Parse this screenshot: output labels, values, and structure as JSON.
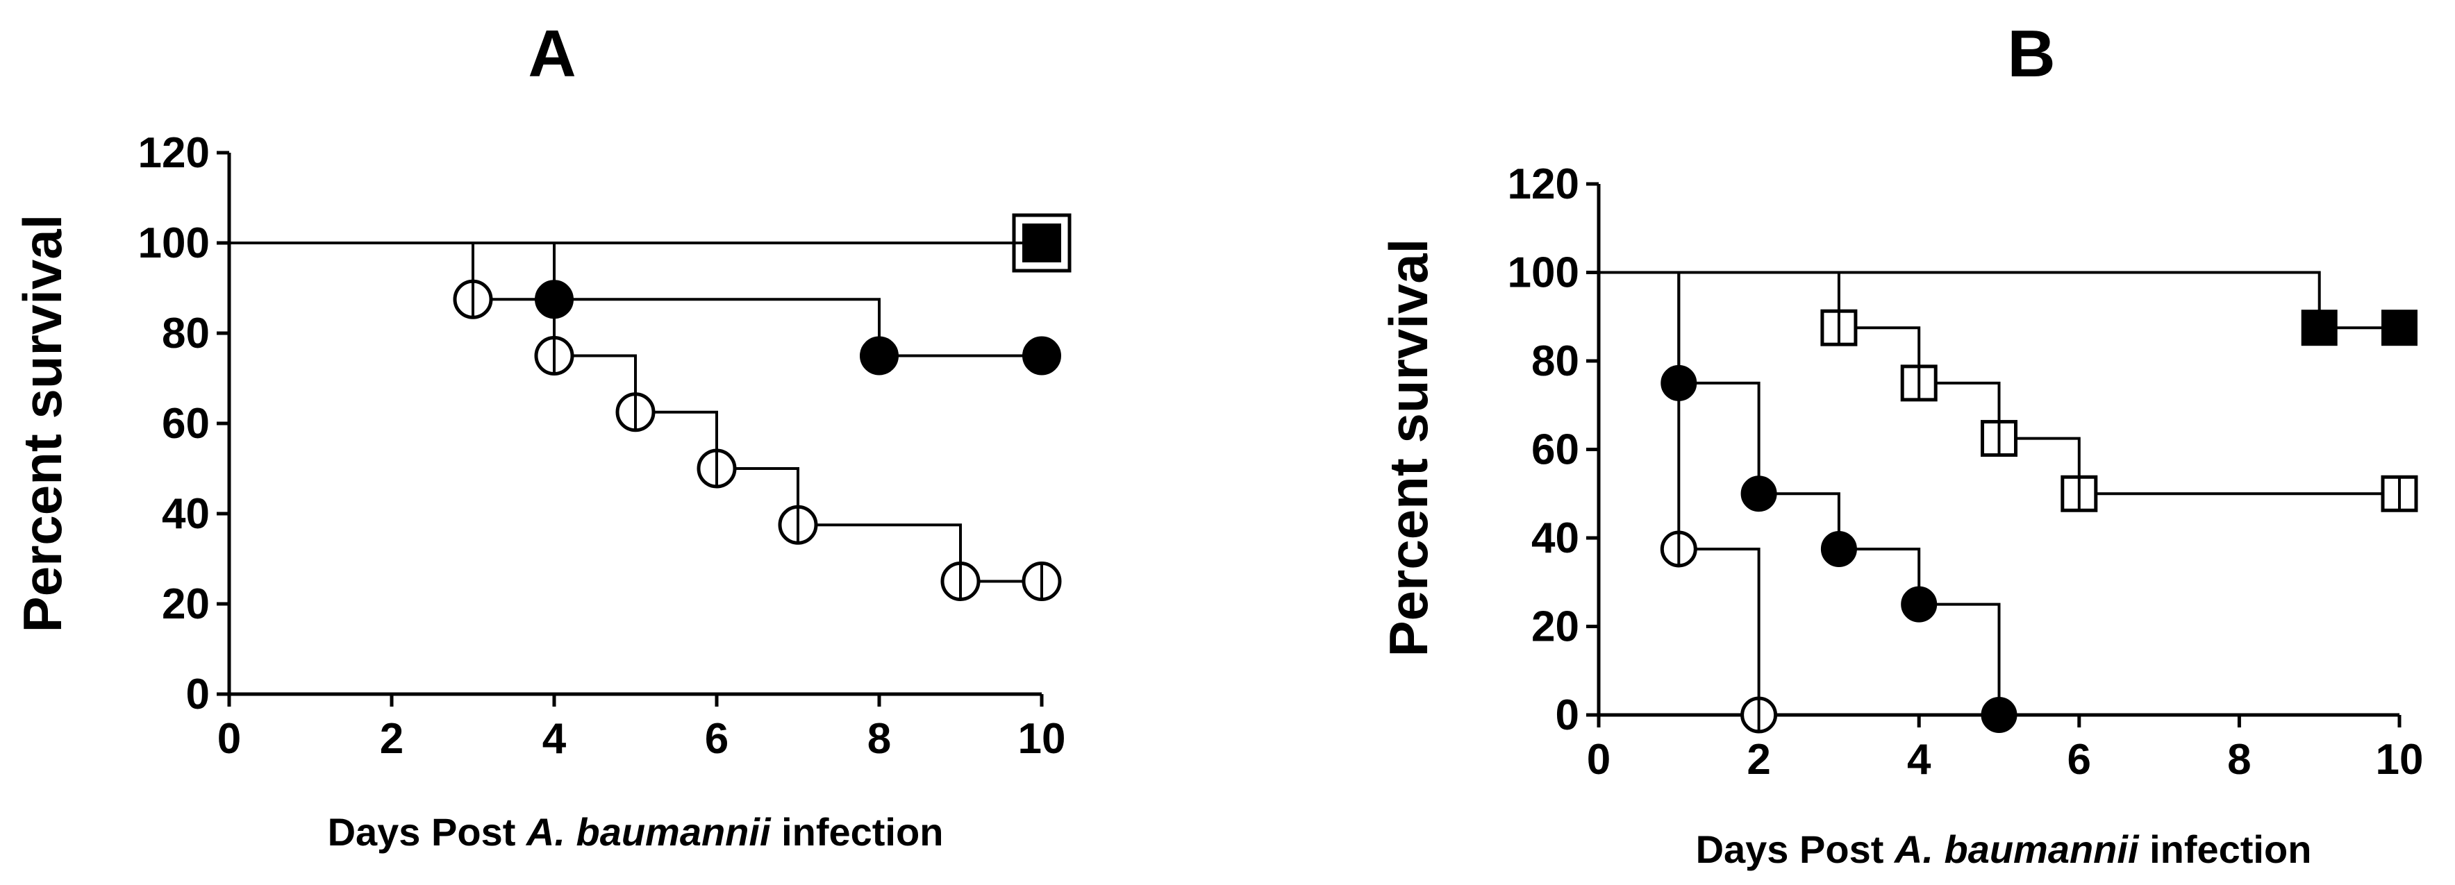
{
  "chart_data": [
    {
      "type": "line",
      "title": "A",
      "ylabel": "Percent survival",
      "xlabel": {
        "pre": "Days Post ",
        "italic": "A. baumannii",
        "post": " infection"
      },
      "xlim": [
        0,
        10
      ],
      "ylim": [
        0,
        120
      ],
      "xticks": [
        0,
        2,
        4,
        6,
        8,
        10
      ],
      "yticks": [
        0,
        20,
        40,
        60,
        80,
        100,
        120
      ],
      "step": true,
      "series": [
        {
          "marker": "filled-square",
          "points": [
            [
              0,
              100
            ],
            [
              10,
              100
            ]
          ],
          "markers": [
            [
              10,
              100
            ]
          ]
        },
        {
          "marker": "open-square",
          "points": [
            [
              0,
              100
            ],
            [
              10,
              100
            ]
          ],
          "markers": [
            [
              10,
              100
            ]
          ]
        },
        {
          "marker": "filled-circle",
          "points": [
            [
              0,
              100
            ],
            [
              4,
              87.5
            ],
            [
              8,
              75
            ],
            [
              10,
              75
            ]
          ],
          "markers": [
            [
              4,
              87.5
            ],
            [
              8,
              75
            ],
            [
              10,
              75
            ]
          ]
        },
        {
          "marker": "open-circle",
          "points": [
            [
              0,
              100
            ],
            [
              3,
              87.5
            ],
            [
              4,
              75
            ],
            [
              5,
              62.5
            ],
            [
              6,
              50
            ],
            [
              7,
              37.5
            ],
            [
              9,
              25
            ],
            [
              10,
              25
            ]
          ],
          "markers": [
            [
              3,
              87.5
            ],
            [
              4,
              75
            ],
            [
              5,
              62.5
            ],
            [
              6,
              50
            ],
            [
              7,
              37.5
            ],
            [
              9,
              25
            ],
            [
              10,
              25
            ]
          ]
        }
      ]
    },
    {
      "type": "line",
      "title": "B",
      "ylabel": "Percent survival",
      "xlabel": {
        "pre": "Days Post ",
        "italic": "A. baumannii",
        "post": " infection"
      },
      "xlim": [
        0,
        10
      ],
      "ylim": [
        0,
        120
      ],
      "xticks": [
        0,
        2,
        4,
        6,
        8,
        10
      ],
      "yticks": [
        0,
        20,
        40,
        60,
        80,
        100,
        120
      ],
      "step": true,
      "series": [
        {
          "marker": "filled-square",
          "points": [
            [
              0,
              100
            ],
            [
              9,
              87.5
            ],
            [
              10,
              87.5
            ]
          ],
          "markers": [
            [
              9,
              87.5
            ],
            [
              10,
              87.5
            ]
          ]
        },
        {
          "marker": "open-square",
          "points": [
            [
              0,
              100
            ],
            [
              3,
              87.5
            ],
            [
              4,
              75
            ],
            [
              5,
              62.5
            ],
            [
              6,
              50
            ],
            [
              10,
              50
            ]
          ],
          "markers": [
            [
              3,
              87.5
            ],
            [
              4,
              75
            ],
            [
              5,
              62.5
            ],
            [
              6,
              50
            ],
            [
              10,
              50
            ]
          ]
        },
        {
          "marker": "filled-circle",
          "points": [
            [
              0,
              100
            ],
            [
              1,
              75
            ],
            [
              2,
              50
            ],
            [
              3,
              37.5
            ],
            [
              4,
              25
            ],
            [
              5,
              0
            ]
          ],
          "markers": [
            [
              1,
              75
            ],
            [
              2,
              50
            ],
            [
              3,
              37.5
            ],
            [
              4,
              25
            ],
            [
              5,
              0
            ]
          ]
        },
        {
          "marker": "open-circle",
          "points": [
            [
              0,
              100
            ],
            [
              1,
              37.5
            ],
            [
              2,
              0
            ]
          ],
          "markers": [
            [
              1,
              37.5
            ],
            [
              2,
              0
            ]
          ]
        }
      ]
    }
  ]
}
